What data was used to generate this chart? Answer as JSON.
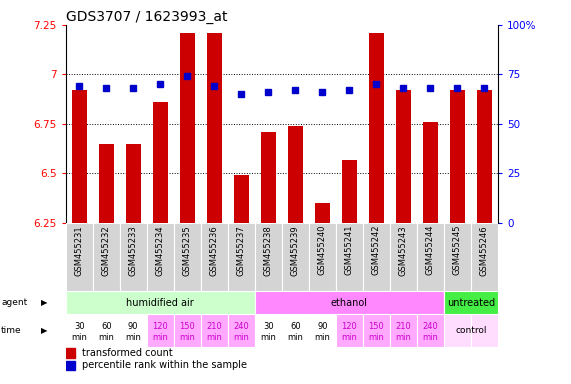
{
  "title": "GDS3707 / 1623993_at",
  "samples": [
    "GSM455231",
    "GSM455232",
    "GSM455233",
    "GSM455234",
    "GSM455235",
    "GSM455236",
    "GSM455237",
    "GSM455238",
    "GSM455239",
    "GSM455240",
    "GSM455241",
    "GSM455242",
    "GSM455243",
    "GSM455244",
    "GSM455245",
    "GSM455246"
  ],
  "transformed_count": [
    6.92,
    6.65,
    6.65,
    6.86,
    7.21,
    7.21,
    6.49,
    6.71,
    6.74,
    6.35,
    6.57,
    7.21,
    6.92,
    6.76,
    6.92,
    6.92
  ],
  "percentile_rank": [
    69,
    68,
    68,
    70,
    74,
    69,
    65,
    66,
    67,
    66,
    67,
    70,
    68,
    68,
    68,
    68
  ],
  "ylim": [
    6.25,
    7.25
  ],
  "yticks": [
    6.25,
    6.5,
    6.75,
    7.0,
    7.25
  ],
  "ytick_labels": [
    "6.25",
    "6.5",
    "6.75",
    "7",
    "7.25"
  ],
  "right_yticks": [
    0,
    25,
    50,
    75,
    100
  ],
  "right_ytick_labels": [
    "0",
    "25",
    "50",
    "75",
    "100%"
  ],
  "agent_groups": [
    {
      "label": "humidified air",
      "start": 0,
      "end": 7,
      "color": "#ccffcc"
    },
    {
      "label": "ethanol",
      "start": 7,
      "end": 14,
      "color": "#ff88ff"
    },
    {
      "label": "untreated",
      "start": 14,
      "end": 16,
      "color": "#44ee44"
    }
  ],
  "time_labels_top": [
    "30",
    "60",
    "90",
    "120",
    "150",
    "210",
    "240",
    "30",
    "60",
    "90",
    "120",
    "150",
    "210",
    "240",
    "",
    ""
  ],
  "time_labels_bot": [
    "min",
    "min",
    "min",
    "min",
    "min",
    "min",
    "min",
    "min",
    "min",
    "min",
    "min",
    "min",
    "min",
    "min",
    "",
    ""
  ],
  "time_colors": [
    "#ffffff",
    "#ffffff",
    "#ffffff",
    "#ffaaff",
    "#ffaaff",
    "#ffaaff",
    "#ffaaff",
    "#ffffff",
    "#ffffff",
    "#ffffff",
    "#ffaaff",
    "#ffaaff",
    "#ffaaff",
    "#ffaaff",
    "#ffddff",
    "#ffddff"
  ],
  "time_font_colors": [
    "#000000",
    "#000000",
    "#000000",
    "#cc00cc",
    "#cc00cc",
    "#cc00cc",
    "#cc00cc",
    "#000000",
    "#000000",
    "#000000",
    "#cc00cc",
    "#cc00cc",
    "#cc00cc",
    "#cc00cc",
    "#000000",
    "#000000"
  ],
  "time_row_last": "control",
  "bar_color": "#cc0000",
  "dot_color": "#0000cc",
  "background_color": "#ffffff",
  "label_fontsize": 7,
  "title_fontsize": 10,
  "hgrid_values": [
    6.5,
    6.75,
    7.0
  ]
}
